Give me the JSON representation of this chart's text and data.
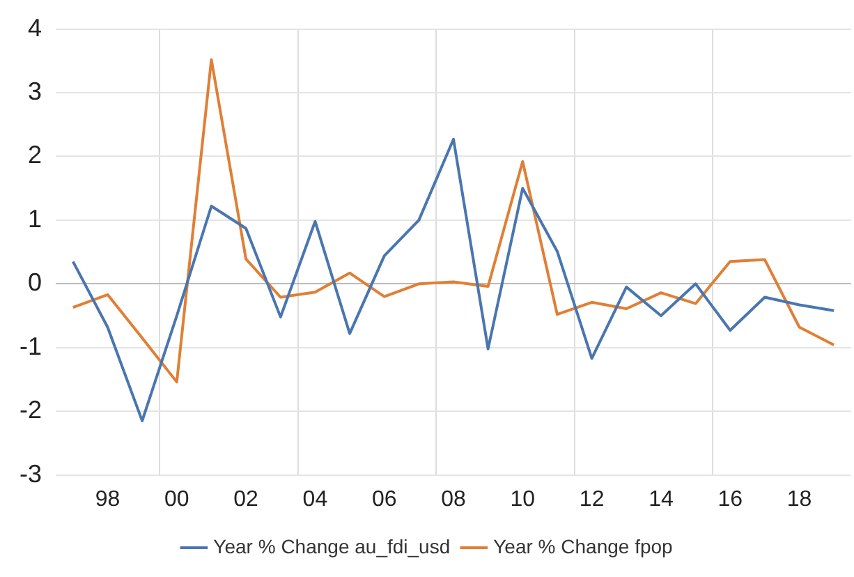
{
  "chart_data": {
    "type": "line",
    "categories": [
      null,
      "98",
      null,
      "00",
      null,
      "02",
      null,
      "04",
      null,
      "06",
      null,
      "08",
      null,
      "10",
      null,
      "12",
      null,
      "14",
      null,
      "16",
      null,
      "18",
      null
    ],
    "series": [
      {
        "name": "Year % Change au_fdi_usd",
        "color": "#4a76b0",
        "values": [
          0.35,
          -0.68,
          -2.15,
          -0.5,
          1.22,
          0.87,
          -0.52,
          0.98,
          -0.78,
          0.44,
          1.0,
          2.27,
          -1.02,
          1.5,
          0.51,
          -1.17,
          -0.05,
          -0.5,
          0.0,
          -0.73,
          -0.21,
          -0.33,
          -0.42
        ]
      },
      {
        "name": "Year % Change fpop",
        "color": "#e07f35",
        "values": [
          -0.37,
          -0.17,
          -0.85,
          -1.54,
          3.52,
          0.39,
          -0.21,
          -0.13,
          0.17,
          -0.2,
          0.0,
          0.03,
          -0.04,
          1.92,
          -0.48,
          -0.29,
          -0.39,
          -0.14,
          -0.31,
          0.35,
          0.38,
          -0.68,
          -0.96
        ]
      }
    ],
    "ylim": [
      -3,
      4
    ],
    "yticks": [
      -3,
      -2,
      -1,
      0,
      1,
      2,
      3,
      4
    ],
    "grid": true,
    "legend": "bottom",
    "marker": "none",
    "line_style": "solid"
  }
}
